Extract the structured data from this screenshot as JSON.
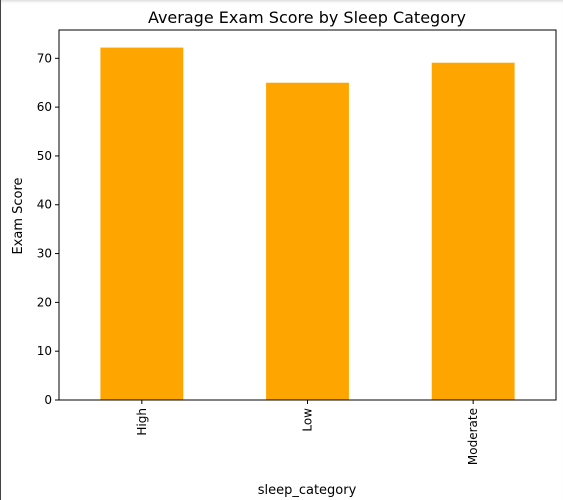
{
  "chart_data": {
    "type": "bar",
    "title": "Average Exam Score by Sleep Category",
    "xlabel": "sleep_category",
    "ylabel": "Exam Score",
    "categories": [
      "High",
      "Low",
      "Moderate"
    ],
    "values": [
      72.2,
      65.0,
      69.1
    ],
    "ylim": [
      0,
      75.8
    ],
    "yticks": [
      0,
      10,
      20,
      30,
      40,
      50,
      60,
      70
    ],
    "bar_color": "#ffa500",
    "grid": false,
    "legend": "none"
  }
}
